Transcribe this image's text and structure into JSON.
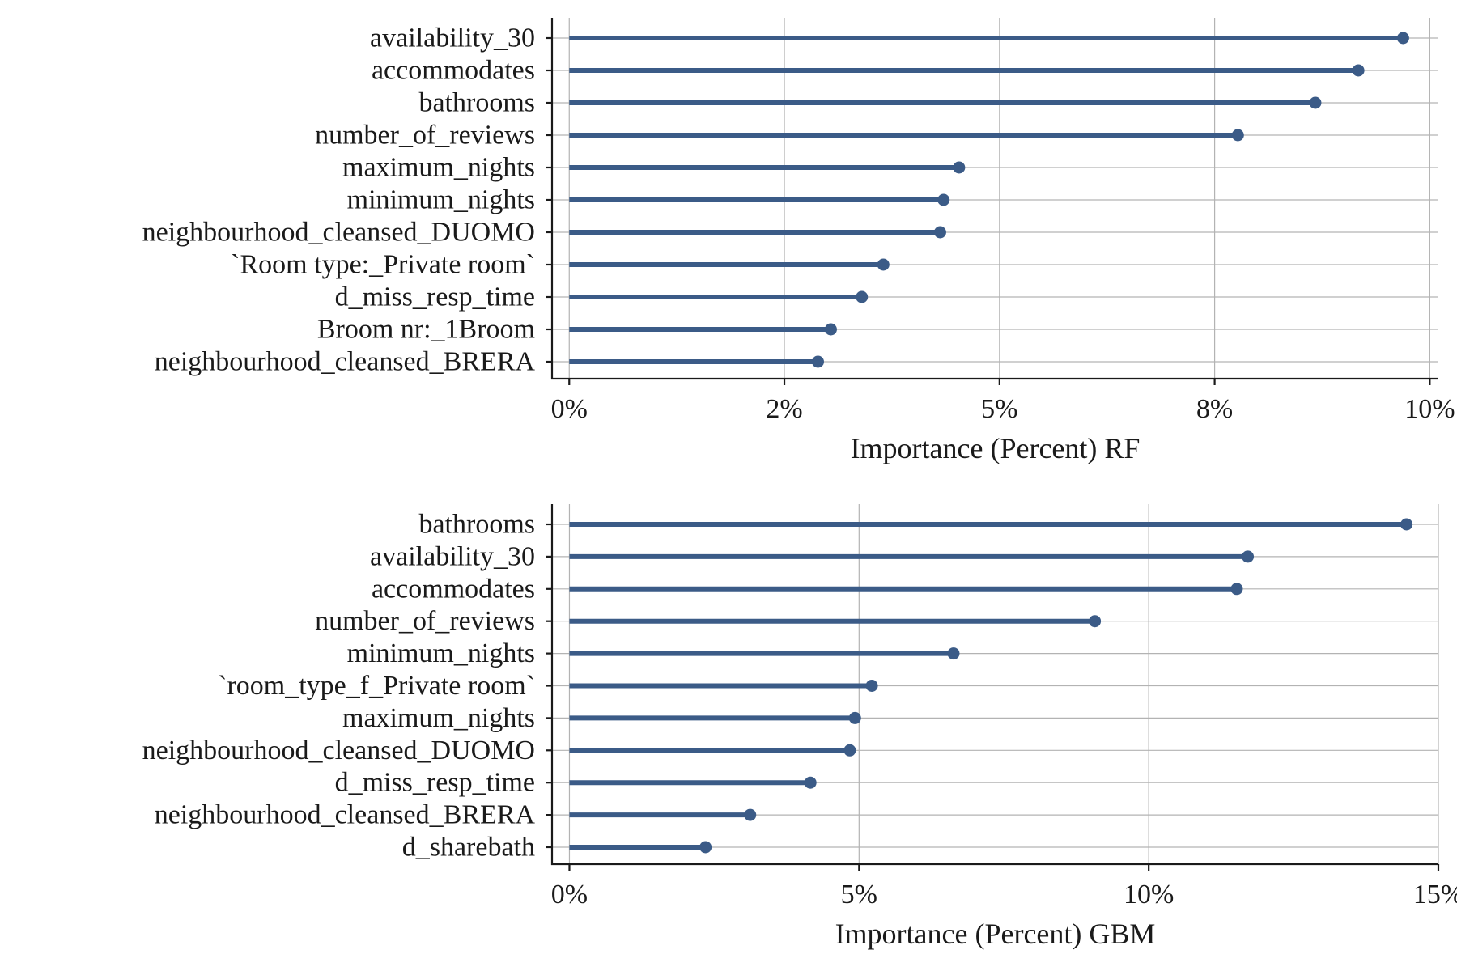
{
  "chart_data": [
    {
      "type": "lollipop",
      "xlabel": "Importance (Percent) RF",
      "xlim": [
        -0.2,
        10.1
      ],
      "x_ticks": [
        0,
        2.5,
        5,
        7.5,
        10
      ],
      "x_tick_labels": [
        "0%",
        "2%",
        "5%",
        "8%",
        "10%"
      ],
      "grid": true,
      "color": "#3b5b87",
      "categories": [
        "availability_30",
        "accommodates",
        "bathrooms",
        "number_of_reviews",
        "maximum_nights",
        "minimum_nights",
        "neighbourhood_cleansed_DUOMO",
        "`Room type:_Private room`",
        "d_miss_resp_time",
        "Broom nr:_1Broom",
        "neighbourhood_cleansed_BRERA"
      ],
      "values": [
        9.69,
        9.17,
        8.67,
        7.77,
        4.53,
        4.35,
        4.31,
        3.65,
        3.4,
        3.04,
        2.89
      ]
    },
    {
      "type": "lollipop",
      "xlabel": "Importance (Percent) GBM",
      "xlim": [
        -0.3,
        15.0
      ],
      "x_ticks": [
        0,
        5,
        10,
        15
      ],
      "x_tick_labels": [
        "0%",
        "5%",
        "10%",
        "15%"
      ],
      "grid": true,
      "color": "#3b5b87",
      "categories": [
        "bathrooms",
        "availability_30",
        "accommodates",
        "number_of_reviews",
        "minimum_nights",
        "`room_type_f_Private room`",
        "maximum_nights",
        "neighbourhood_cleansed_DUOMO",
        "d_miss_resp_time",
        "neighbourhood_cleansed_BRERA",
        "d_sharebath"
      ],
      "values": [
        14.45,
        11.71,
        11.52,
        9.07,
        6.63,
        5.22,
        4.93,
        4.84,
        4.16,
        3.12,
        2.35
      ]
    }
  ]
}
